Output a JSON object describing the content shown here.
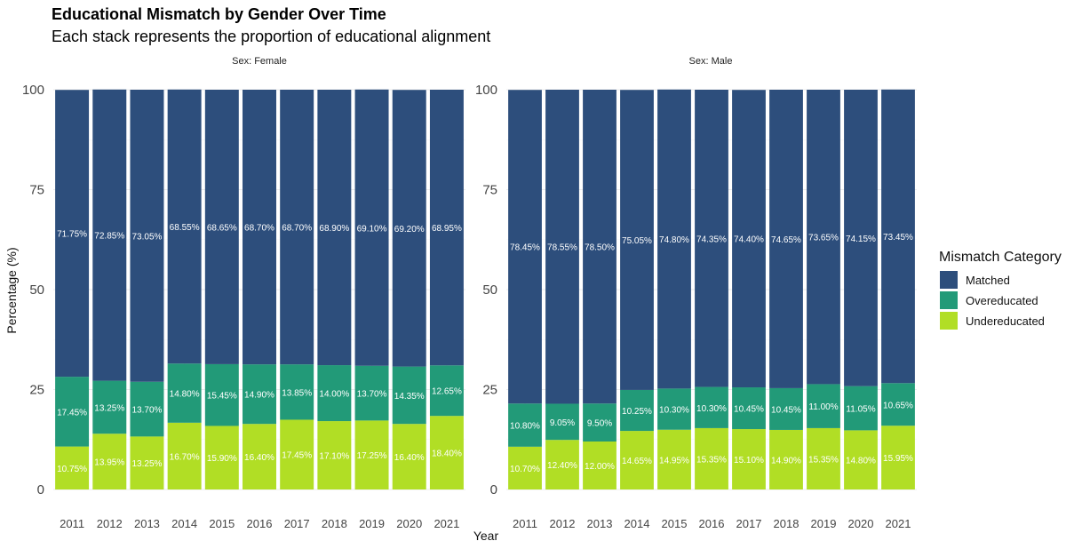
{
  "title": "Educational Mismatch by Gender Over Time",
  "subtitle": "Each stack represents the proportion of educational alignment",
  "chart_data": {
    "type": "bar",
    "stacked": true,
    "xlabel": "Year",
    "ylabel": "Percentage (%)",
    "ylim": [
      0,
      100
    ],
    "yticks": [
      0,
      25,
      50,
      75,
      100
    ],
    "grid": true,
    "legend": {
      "title": "Mismatch Category",
      "placement": "right",
      "items": [
        {
          "name": "Matched",
          "color": "#2d4e7c"
        },
        {
          "name": "Overeducated",
          "color": "#229a78"
        },
        {
          "name": "Undereducated",
          "color": "#b1de25"
        }
      ]
    },
    "categories": [
      "2011",
      "2012",
      "2013",
      "2014",
      "2015",
      "2016",
      "2017",
      "2018",
      "2019",
      "2020",
      "2021"
    ],
    "panels": [
      {
        "strip": "Sex: Female",
        "series": [
          {
            "name": "Undereducated",
            "values": [
              10.75,
              13.95,
              13.25,
              16.7,
              15.9,
              16.4,
              17.45,
              17.1,
              17.25,
              16.4,
              18.4
            ],
            "labels": [
              "10.75%",
              "13.95%",
              "13.25%",
              "16.70%",
              "15.90%",
              "16.40%",
              "17.45%",
              "17.10%",
              "17.25%",
              "16.40%",
              "18.40%"
            ]
          },
          {
            "name": "Overeducated",
            "values": [
              17.45,
              13.25,
              13.7,
              14.8,
              15.45,
              14.9,
              13.85,
              14.0,
              13.7,
              14.35,
              12.65
            ],
            "labels": [
              "17.45%",
              "13.25%",
              "13.70%",
              "14.80%",
              "15.45%",
              "14.90%",
              "13.85%",
              "14.00%",
              "13.70%",
              "14.35%",
              "12.65%"
            ]
          },
          {
            "name": "Matched",
            "values": [
              71.75,
              72.85,
              73.05,
              68.55,
              68.65,
              68.7,
              68.7,
              68.9,
              69.1,
              69.2,
              68.95
            ],
            "labels": [
              "71.75%",
              "72.85%",
              "73.05%",
              "68.55%",
              "68.65%",
              "68.70%",
              "68.70%",
              "68.90%",
              "69.10%",
              "69.20%",
              "68.95%"
            ]
          }
        ]
      },
      {
        "strip": "Sex: Male",
        "series": [
          {
            "name": "Undereducated",
            "values": [
              10.7,
              12.4,
              12.0,
              14.65,
              14.95,
              15.35,
              15.1,
              14.9,
              15.35,
              14.8,
              15.95
            ],
            "labels": [
              "10.70%",
              "12.40%",
              "12.00%",
              "14.65%",
              "14.95%",
              "15.35%",
              "15.10%",
              "14.90%",
              "15.35%",
              "14.80%",
              "15.95%"
            ]
          },
          {
            "name": "Overeducated",
            "values": [
              10.8,
              9.05,
              9.5,
              10.25,
              10.3,
              10.3,
              10.45,
              10.45,
              11.0,
              11.05,
              10.65
            ],
            "labels": [
              "10.80%",
              "9.05%",
              "9.50%",
              "10.25%",
              "10.30%",
              "10.30%",
              "10.45%",
              "10.45%",
              "11.00%",
              "11.05%",
              "10.65%"
            ]
          },
          {
            "name": "Matched",
            "values": [
              78.45,
              78.55,
              78.5,
              75.05,
              74.8,
              74.35,
              74.4,
              74.65,
              73.65,
              74.15,
              73.45
            ],
            "labels": [
              "78.45%",
              "78.55%",
              "78.50%",
              "75.05%",
              "74.80%",
              "74.35%",
              "74.40%",
              "74.65%",
              "73.65%",
              "74.15%",
              "73.45%"
            ]
          }
        ]
      }
    ]
  }
}
